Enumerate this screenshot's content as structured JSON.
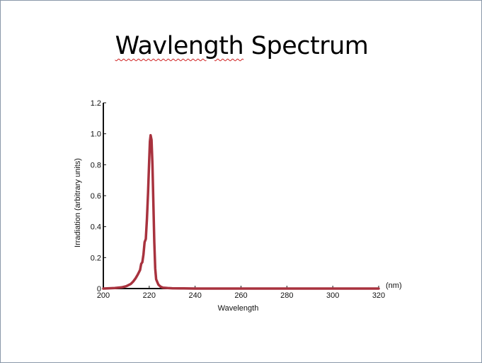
{
  "slide": {
    "title_word1": "Wavlength",
    "title_word2": " Spectrum"
  },
  "chart_data": {
    "type": "line",
    "xlabel": "Wavelength",
    "x_unit": "(nm)",
    "ylabel": "Irradiation (arbitrary units)",
    "xlim": [
      200,
      320
    ],
    "ylim": [
      0,
      1.2
    ],
    "x_ticks": [
      200,
      220,
      240,
      260,
      280,
      300,
      320
    ],
    "y_ticks": [
      0,
      0.2,
      0.4,
      0.6,
      0.8,
      1.0,
      1.2
    ],
    "x_tick_labels": [
      "200",
      "220",
      "240",
      "260",
      "280",
      "300",
      "320"
    ],
    "y_tick_labels": [
      "0",
      "0.2",
      "0.4",
      "0.6",
      "0.8",
      "1.0",
      "1.2"
    ],
    "grid": false,
    "series": [
      {
        "color": "#a8323e",
        "x": [
          200,
          205,
          208,
          210,
          212,
          213,
          214,
          215,
          216,
          216.5,
          217,
          217.5,
          218,
          218.5,
          219,
          219.5,
          220,
          220.3,
          220.6,
          221,
          221.4,
          221.8,
          222.2,
          222.6,
          223,
          224,
          225,
          226,
          228,
          230,
          235,
          240,
          260,
          280,
          300,
          320
        ],
        "y": [
          0,
          0.003,
          0.008,
          0.015,
          0.03,
          0.045,
          0.065,
          0.09,
          0.12,
          0.16,
          0.17,
          0.22,
          0.3,
          0.32,
          0.45,
          0.62,
          0.83,
          0.95,
          0.99,
          0.96,
          0.8,
          0.55,
          0.3,
          0.13,
          0.06,
          0.025,
          0.012,
          0.006,
          0.003,
          0.002,
          0.001,
          0,
          0,
          0,
          0,
          0
        ]
      }
    ]
  }
}
